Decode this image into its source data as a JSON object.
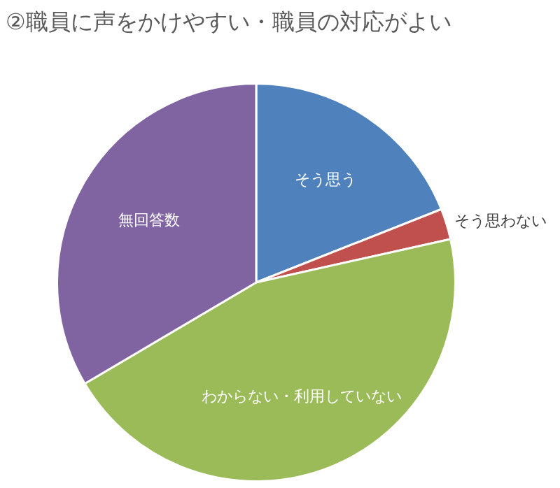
{
  "chart_data": {
    "type": "pie",
    "title": "②職員に声をかけやすい・職員の対応がよい",
    "categories": [
      "そう思う",
      "そう思わない",
      "わからない・利用していない",
      "無回答数"
    ],
    "values": [
      19,
      2.5,
      45,
      33.5
    ],
    "colors": [
      "#4f81bd",
      "#c0504d",
      "#9bbb59",
      "#8064a2"
    ],
    "legend": false
  }
}
